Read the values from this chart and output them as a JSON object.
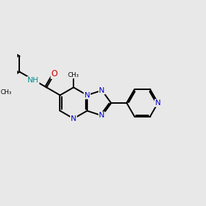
{
  "bg_color": "#e8e8e8",
  "bond_color": "#000000",
  "N_color": "#0000cc",
  "O_color": "#cc0000",
  "NH_color": "#008b8b",
  "lw": 1.5,
  "fs": 8.0,
  "xlim": [
    -4.5,
    7.5
  ],
  "ylim": [
    -3.5,
    3.5
  ]
}
